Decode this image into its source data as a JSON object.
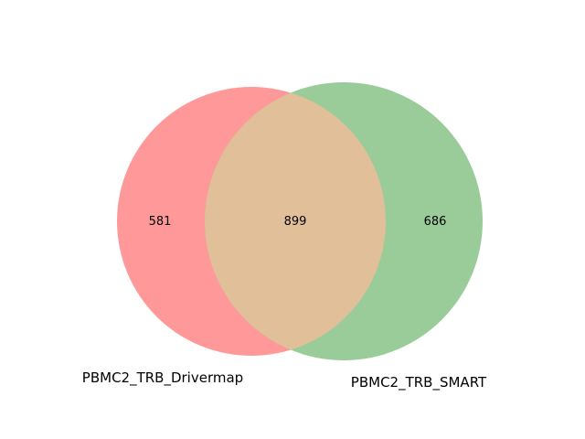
{
  "venn": {
    "sets": [
      {
        "name": "PBMC2_TRB_Drivermap",
        "color": "#ff9999"
      },
      {
        "name": "PBMC2_TRB_SMART",
        "color": "#99cc99"
      }
    ],
    "overlap_color": "#e0bf99",
    "counts": {
      "left_only": "581",
      "both": "899",
      "right_only": "686"
    }
  }
}
